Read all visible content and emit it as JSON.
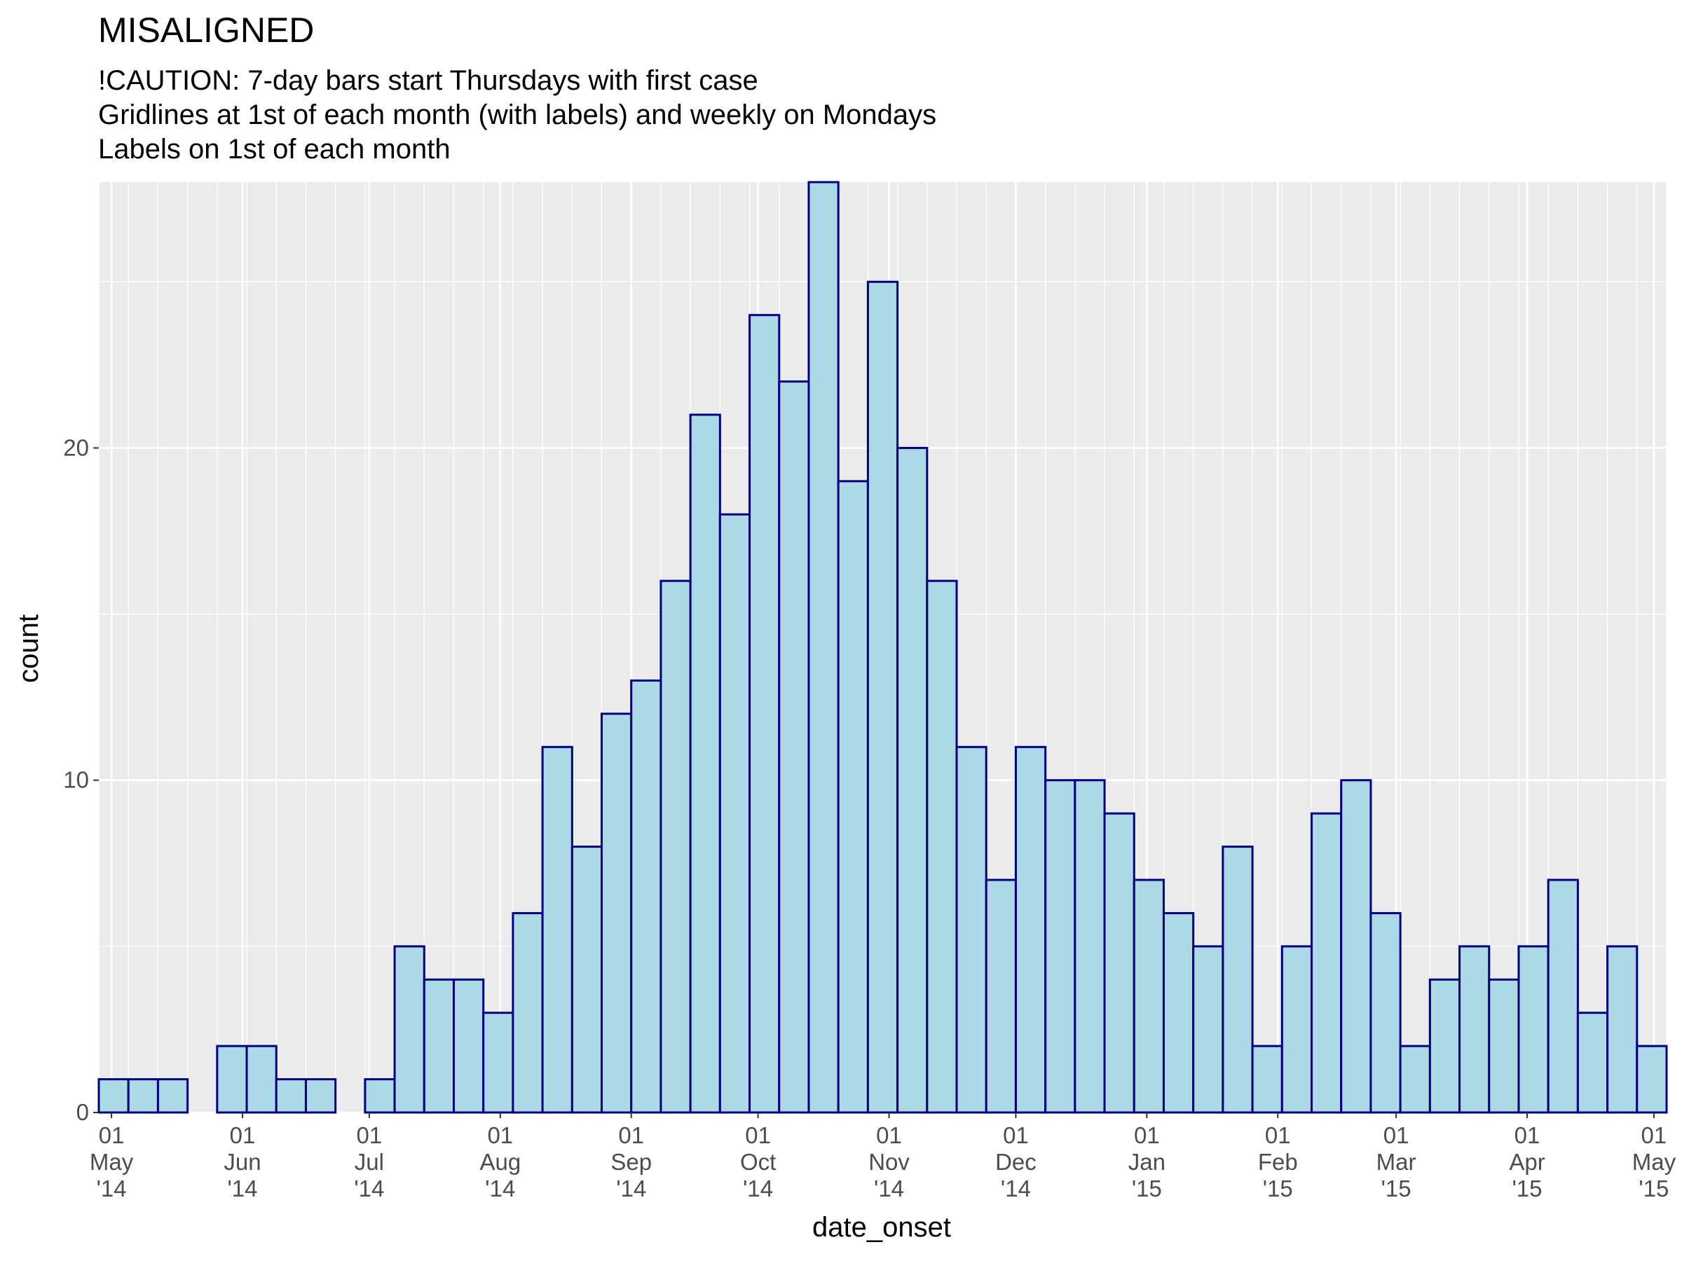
{
  "chart_data": {
    "type": "histogram",
    "title": "MISALIGNED",
    "subtitle": [
      "!CAUTION: 7-day bars start Thursdays with first case",
      "Gridlines at 1st of each month (with labels) and weekly on Mondays",
      "Labels on 1st of each month"
    ],
    "x_label": "date_onset",
    "y_label": "count",
    "bins": [
      "2014-04-28",
      "2014-05-05",
      "2014-05-12",
      "2014-05-19",
      "2014-05-26",
      "2014-06-02",
      "2014-06-09",
      "2014-06-16",
      "2014-06-23",
      "2014-06-30",
      "2014-07-07",
      "2014-07-14",
      "2014-07-21",
      "2014-07-28",
      "2014-08-04",
      "2014-08-11",
      "2014-08-18",
      "2014-08-25",
      "2014-09-01",
      "2014-09-08",
      "2014-09-15",
      "2014-09-22",
      "2014-09-29",
      "2014-10-06",
      "2014-10-13",
      "2014-10-20",
      "2014-10-27",
      "2014-11-03",
      "2014-11-10",
      "2014-11-17",
      "2014-11-24",
      "2014-12-01",
      "2014-12-08",
      "2014-12-15",
      "2014-12-22",
      "2014-12-29",
      "2015-01-05",
      "2015-01-12",
      "2015-01-19",
      "2015-01-26",
      "2015-02-02",
      "2015-02-09",
      "2015-02-16",
      "2015-02-23",
      "2015-03-02",
      "2015-03-09",
      "2015-03-16",
      "2015-03-23",
      "2015-03-30",
      "2015-04-06",
      "2015-04-13",
      "2015-04-20",
      "2015-04-27",
      "2015-05-04"
    ],
    "values": [
      1,
      1,
      1,
      0,
      2,
      2,
      1,
      1,
      0,
      1,
      5,
      4,
      4,
      3,
      6,
      11,
      8,
      12,
      13,
      16,
      21,
      18,
      24,
      22,
      28,
      19,
      25,
      20,
      16,
      11,
      7,
      11,
      10,
      10,
      9,
      7,
      6,
      5,
      8,
      2,
      5,
      9,
      10,
      6,
      2,
      4,
      5,
      4,
      5,
      7,
      3,
      5,
      2
    ],
    "color": "#add8e6",
    "edge_color": "#000080",
    "xlim": [
      "2014-04-28",
      "2015-05-04"
    ],
    "xticks": [
      {
        "value": "2014-05-01",
        "label": "01\nMay\n'14"
      },
      {
        "value": "2014-06-01",
        "label": "01\nJun\n'14"
      },
      {
        "value": "2014-07-01",
        "label": "01\nJul\n'14"
      },
      {
        "value": "2014-08-01",
        "label": "01\nAug\n'14"
      },
      {
        "value": "2014-09-01",
        "label": "01\nSep\n'14"
      },
      {
        "value": "2014-10-01",
        "label": "01\nOct\n'14"
      },
      {
        "value": "2014-11-01",
        "label": "01\nNov\n'14"
      },
      {
        "value": "2014-12-01",
        "label": "01\nDec\n'14"
      },
      {
        "value": "2015-01-01",
        "label": "01\nJan\n'15"
      },
      {
        "value": "2015-02-01",
        "label": "01\nFeb\n'15"
      },
      {
        "value": "2015-03-01",
        "label": "01\nMar\n'15"
      },
      {
        "value": "2015-04-01",
        "label": "01\nApr\n'15"
      },
      {
        "value": "2015-05-01",
        "label": "01\nMay\n'15"
      }
    ],
    "ylim": [
      0,
      28
    ],
    "yticks": [
      0,
      10,
      20
    ],
    "minor_yticks": [
      5,
      15,
      25
    ],
    "grid": true
  }
}
